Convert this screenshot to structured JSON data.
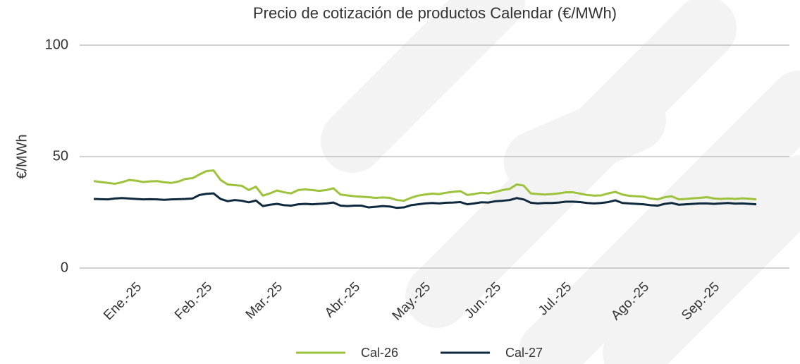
{
  "chart_data": {
    "type": "line",
    "title": "Precio de cotización de productos Calendar (€/MWh)",
    "ylabel": "€/MWh",
    "categories": [
      null,
      null,
      null,
      null,
      null,
      null,
      "Ene.-25",
      null,
      null,
      null,
      null,
      null,
      null,
      null,
      null,
      null,
      "Feb.-25",
      null,
      null,
      null,
      null,
      null,
      null,
      null,
      null,
      null,
      "Mar.-25",
      null,
      null,
      null,
      null,
      null,
      null,
      null,
      null,
      null,
      null,
      "Abr.-25",
      null,
      null,
      null,
      null,
      null,
      null,
      null,
      null,
      null,
      "May.-25",
      null,
      null,
      null,
      null,
      null,
      null,
      null,
      null,
      null,
      "Jun.-25",
      null,
      null,
      null,
      null,
      null,
      null,
      null,
      null,
      null,
      "Jul.-25",
      null,
      null,
      null,
      null,
      null,
      null,
      null,
      null,
      null,
      null,
      "Ago.-25",
      null,
      null,
      null,
      null,
      null,
      null,
      null,
      null,
      null,
      "Sep.-25",
      null,
      null,
      null,
      null,
      null,
      null
    ],
    "series": [
      {
        "name": "Cal-26",
        "color": "#9dc23b",
        "values": [
          39,
          38.6,
          38.2,
          37.8,
          38.5,
          39.5,
          39.2,
          38.6,
          38.9,
          39.0,
          38.5,
          38.2,
          38.8,
          40.0,
          40.3,
          42.0,
          43.5,
          43.8,
          39.5,
          37.5,
          37.2,
          36.9,
          35.0,
          36.5,
          32.5,
          33.5,
          34.8,
          34.0,
          33.5,
          35.0,
          35.3,
          35.0,
          34.6,
          35.0,
          35.8,
          33.0,
          32.6,
          32.2,
          32.0,
          31.8,
          31.5,
          31.7,
          31.5,
          30.5,
          30.2,
          31.5,
          32.5,
          33.0,
          33.4,
          33.2,
          33.8,
          34.2,
          34.5,
          32.8,
          33.2,
          33.8,
          33.5,
          34.2,
          35.0,
          35.5,
          37.5,
          37.0,
          33.5,
          33.2,
          33.0,
          33.2,
          33.5,
          34.0,
          34.0,
          33.4,
          32.8,
          32.5,
          32.6,
          33.5,
          34.2,
          33.0,
          32.4,
          32.2,
          32.0,
          31.2,
          30.8,
          31.8,
          32.2,
          30.8,
          31.0,
          31.3,
          31.5,
          31.8,
          31.2,
          31.0,
          31.2,
          31.0,
          31.3,
          31.1,
          30.8
        ]
      },
      {
        "name": "Cal-27",
        "color": "#0f2a3f",
        "values": [
          31,
          30.9,
          30.8,
          31.2,
          31.4,
          31.2,
          31.0,
          30.8,
          30.9,
          30.8,
          30.6,
          30.8,
          30.9,
          31.0,
          31.2,
          32.8,
          33.3,
          33.5,
          31.0,
          30.0,
          30.5,
          30.2,
          29.5,
          30.3,
          27.8,
          28.4,
          28.8,
          28.2,
          28.0,
          28.6,
          28.8,
          28.6,
          28.8,
          29.0,
          29.4,
          28.0,
          27.8,
          28.0,
          28.0,
          27.2,
          27.5,
          27.8,
          27.6,
          27.0,
          27.2,
          28.2,
          28.6,
          29.0,
          29.2,
          29.0,
          29.3,
          29.4,
          29.6,
          28.6,
          29.0,
          29.5,
          29.4,
          30.0,
          30.2,
          30.5,
          31.4,
          30.8,
          29.3,
          29.0,
          29.2,
          29.2,
          29.4,
          29.8,
          29.8,
          29.6,
          29.2,
          29.0,
          29.2,
          29.6,
          30.4,
          29.2,
          29.0,
          28.8,
          28.6,
          28.2,
          28.0,
          28.8,
          29.2,
          28.4,
          28.6,
          28.8,
          29.0,
          29.0,
          28.8,
          29.0,
          29.2,
          28.9,
          29.0,
          28.8,
          28.6
        ]
      }
    ],
    "ylim": [
      0,
      100
    ],
    "yticks": [
      0,
      50,
      100
    ],
    "grid": true,
    "legend": "bottom"
  }
}
